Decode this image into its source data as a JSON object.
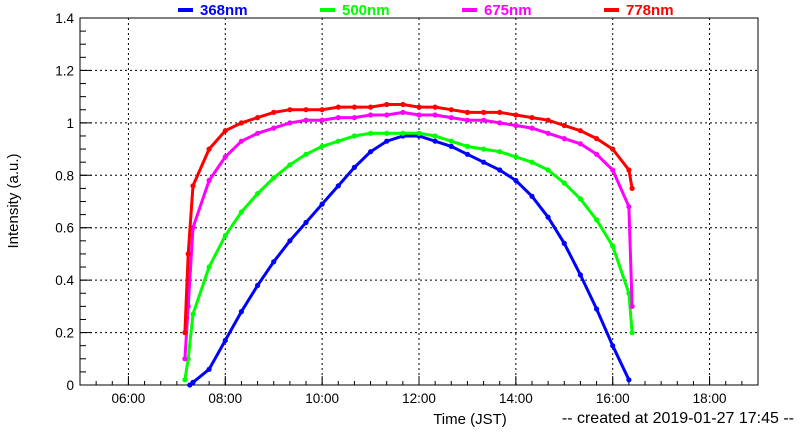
{
  "chart_data": {
    "type": "scatter",
    "title": "",
    "xlabel": "Time (JST)",
    "ylabel": "Intensity (a.u.)",
    "x_unit": "time of day (HH:MM, JST)",
    "xlim": [
      "05:00",
      "19:00"
    ],
    "ylim": [
      0,
      1.4
    ],
    "x_ticks": [
      "06:00",
      "08:00",
      "10:00",
      "12:00",
      "14:00",
      "16:00",
      "18:00"
    ],
    "y_ticks": [
      "0",
      "0.2",
      "0.4",
      "0.6",
      "0.8",
      "1",
      "1.2",
      "1.4"
    ],
    "grid": true,
    "legend_position": "top",
    "series": [
      {
        "name": "368nm",
        "color": "#0000ff",
        "x": [
          "07:16",
          "07:20",
          "07:40",
          "08:00",
          "08:20",
          "08:40",
          "09:00",
          "09:20",
          "09:40",
          "10:00",
          "10:20",
          "10:40",
          "11:00",
          "11:20",
          "11:40",
          "12:00",
          "12:20",
          "12:40",
          "13:00",
          "13:20",
          "13:40",
          "14:00",
          "14:20",
          "14:40",
          "15:00",
          "15:20",
          "15:40",
          "16:00",
          "16:20"
        ],
        "y": [
          0.0,
          0.01,
          0.06,
          0.17,
          0.28,
          0.38,
          0.47,
          0.55,
          0.62,
          0.69,
          0.76,
          0.83,
          0.89,
          0.93,
          0.95,
          0.95,
          0.93,
          0.91,
          0.88,
          0.85,
          0.82,
          0.78,
          0.72,
          0.64,
          0.54,
          0.42,
          0.29,
          0.15,
          0.02
        ]
      },
      {
        "name": "500nm",
        "color": "#00ff00",
        "x": [
          "07:10",
          "07:14",
          "07:20",
          "07:40",
          "08:00",
          "08:20",
          "08:40",
          "09:00",
          "09:20",
          "09:40",
          "10:00",
          "10:20",
          "10:40",
          "11:00",
          "11:20",
          "11:40",
          "12:00",
          "12:20",
          "12:40",
          "13:00",
          "13:20",
          "13:40",
          "14:00",
          "14:20",
          "14:40",
          "15:00",
          "15:20",
          "15:40",
          "16:00",
          "16:20",
          "16:24"
        ],
        "y": [
          0.02,
          0.1,
          0.27,
          0.45,
          0.57,
          0.66,
          0.73,
          0.79,
          0.84,
          0.88,
          0.91,
          0.93,
          0.95,
          0.96,
          0.96,
          0.96,
          0.96,
          0.95,
          0.93,
          0.91,
          0.9,
          0.89,
          0.87,
          0.85,
          0.82,
          0.77,
          0.71,
          0.63,
          0.53,
          0.35,
          0.2
        ]
      },
      {
        "name": "675nm",
        "color": "#ff00ff",
        "x": [
          "07:10",
          "07:14",
          "07:20",
          "07:40",
          "08:00",
          "08:20",
          "08:40",
          "09:00",
          "09:20",
          "09:40",
          "10:00",
          "10:20",
          "10:40",
          "11:00",
          "11:20",
          "11:40",
          "12:00",
          "12:20",
          "12:40",
          "13:00",
          "13:20",
          "13:40",
          "14:00",
          "14:20",
          "14:40",
          "15:00",
          "15:20",
          "15:40",
          "16:00",
          "16:20",
          "16:24"
        ],
        "y": [
          0.1,
          0.3,
          0.6,
          0.78,
          0.87,
          0.93,
          0.96,
          0.98,
          1.0,
          1.01,
          1.01,
          1.02,
          1.02,
          1.03,
          1.03,
          1.04,
          1.03,
          1.03,
          1.02,
          1.01,
          1.01,
          1.0,
          0.99,
          0.98,
          0.96,
          0.94,
          0.92,
          0.88,
          0.82,
          0.68,
          0.3
        ]
      },
      {
        "name": "778nm",
        "color": "#ff0000",
        "x": [
          "07:10",
          "07:14",
          "07:20",
          "07:40",
          "08:00",
          "08:20",
          "08:40",
          "09:00",
          "09:20",
          "09:40",
          "10:00",
          "10:20",
          "10:40",
          "11:00",
          "11:20",
          "11:40",
          "12:00",
          "12:20",
          "12:40",
          "13:00",
          "13:20",
          "13:40",
          "14:00",
          "14:20",
          "14:40",
          "15:00",
          "15:20",
          "15:40",
          "16:00",
          "16:20",
          "16:24"
        ],
        "y": [
          0.2,
          0.5,
          0.76,
          0.9,
          0.97,
          1.0,
          1.02,
          1.04,
          1.05,
          1.05,
          1.05,
          1.06,
          1.06,
          1.06,
          1.07,
          1.07,
          1.06,
          1.06,
          1.05,
          1.04,
          1.04,
          1.04,
          1.03,
          1.02,
          1.01,
          0.99,
          0.97,
          0.94,
          0.9,
          0.82,
          0.75
        ]
      }
    ]
  },
  "footer": {
    "created_text": "-- created at 2019-01-27 17:45 --"
  }
}
